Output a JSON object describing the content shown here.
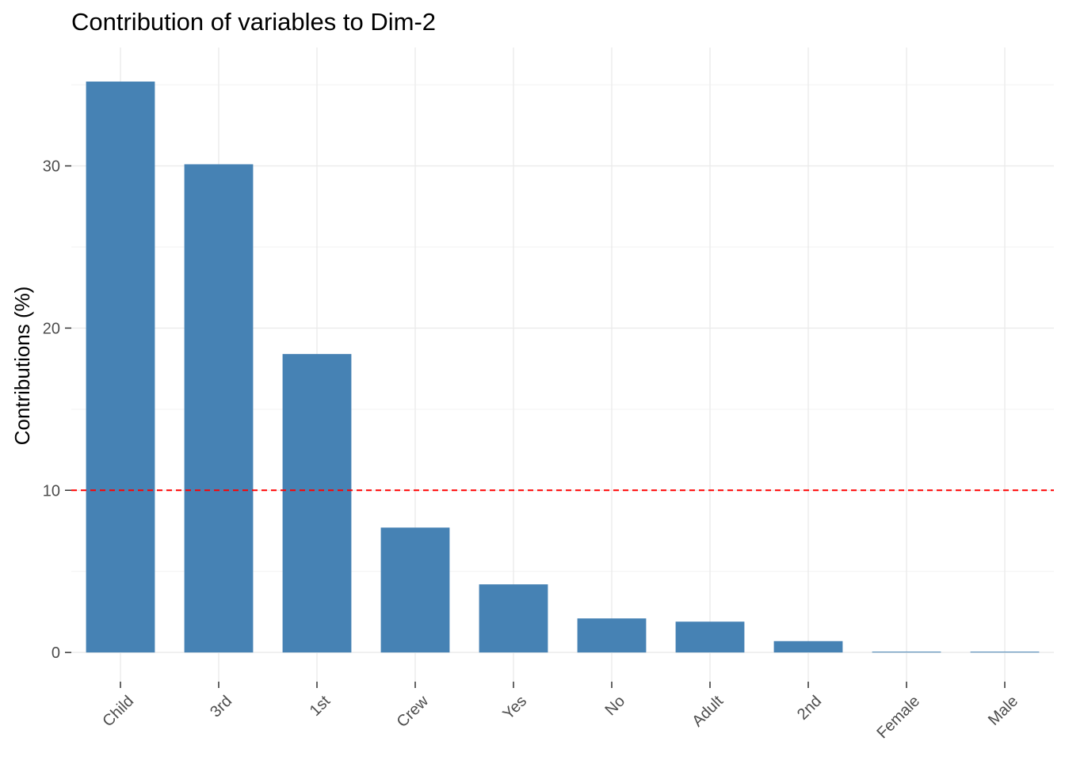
{
  "chart_data": {
    "type": "bar",
    "title": "Contribution of variables to Dim-2",
    "xlabel": "",
    "ylabel": "Contributions (%)",
    "categories": [
      "Child",
      "3rd",
      "1st",
      "Crew",
      "Yes",
      "No",
      "Adult",
      "2nd",
      "Female",
      "Male"
    ],
    "values": [
      35.2,
      30.1,
      18.4,
      7.7,
      4.2,
      2.1,
      1.9,
      0.7,
      0.05,
      0.04
    ],
    "ylim": [
      -1.8,
      37.3
    ],
    "yticks": [
      0,
      10,
      20,
      30
    ],
    "ytick_labels": [
      "0",
      "10",
      "20",
      "30"
    ],
    "reference_line": {
      "value": 10,
      "color": "#ff0000",
      "style": "dashed"
    },
    "bar_color": "#4682b4",
    "grid": true,
    "legend": "none"
  }
}
